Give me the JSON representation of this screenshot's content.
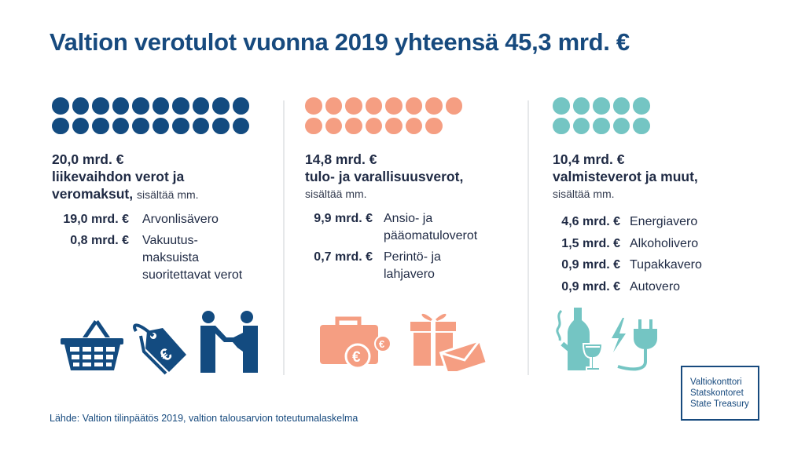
{
  "title": "Valtion verotulot vuonna 2019 yhteensä 45,3 mrd. €",
  "colors": {
    "navy": "#134b80",
    "salmon": "#f59e82",
    "teal": "#74c5c3",
    "title": "#174a7e"
  },
  "columns": [
    {
      "dot_count": 20,
      "dots_per_row": 10,
      "color": "#134b80",
      "amount": "20,0 mrd. €",
      "heading_lines": [
        "liikevaihdon verot ja",
        "veromaksut,"
      ],
      "includes": "sisältää mm.",
      "items": [
        {
          "amount": "19,0 mrd. €",
          "label": "Arvonlisävero"
        },
        {
          "amount": "0,8 mrd. €",
          "label": "Vakuutus-\nmaksuista\nsuoritettavat verot"
        }
      ],
      "icons": [
        "shopping-basket-icon",
        "euro-price-tag-icon",
        "handshake-icon"
      ]
    },
    {
      "dot_count": 15,
      "dots_per_row": 8,
      "color": "#f59e82",
      "amount": "14,8 mrd. €",
      "heading_lines": [
        "tulo- ja varallisuusverot,"
      ],
      "includes": "sisältää mm.",
      "items": [
        {
          "amount": "9,9 mrd. €",
          "label": "Ansio- ja\npääomatuloverot"
        },
        {
          "amount": "0,7 mrd. €",
          "label": "Perintö- ja\nlahjavero"
        }
      ],
      "icons": [
        "briefcase-euro-icon",
        "gift-envelope-icon"
      ]
    },
    {
      "dot_count": 10,
      "dots_per_row": 5,
      "color": "#74c5c3",
      "amount": "10,4 mrd. €",
      "heading_lines": [
        "valmisteverot ja muut,"
      ],
      "includes": "sisältää mm.",
      "items": [
        {
          "amount": "4,6 mrd. €",
          "label": "Energiavero"
        },
        {
          "amount": "1,5 mrd. €",
          "label": "Alkoholivero"
        },
        {
          "amount": "0,9 mrd. €",
          "label": "Tupakkavero"
        },
        {
          "amount": "0,9 mrd. €",
          "label": "Autovero"
        }
      ],
      "icons": [
        "alcohol-tobacco-icon",
        "electric-plug-icon"
      ]
    }
  ],
  "source": "Lähde: Valtion tilinpäätös 2019, valtion talousarvion toteutumalaskelma",
  "logo": {
    "lines": [
      "Valtiokonttori",
      "Statskontoret",
      "State Treasury"
    ]
  }
}
